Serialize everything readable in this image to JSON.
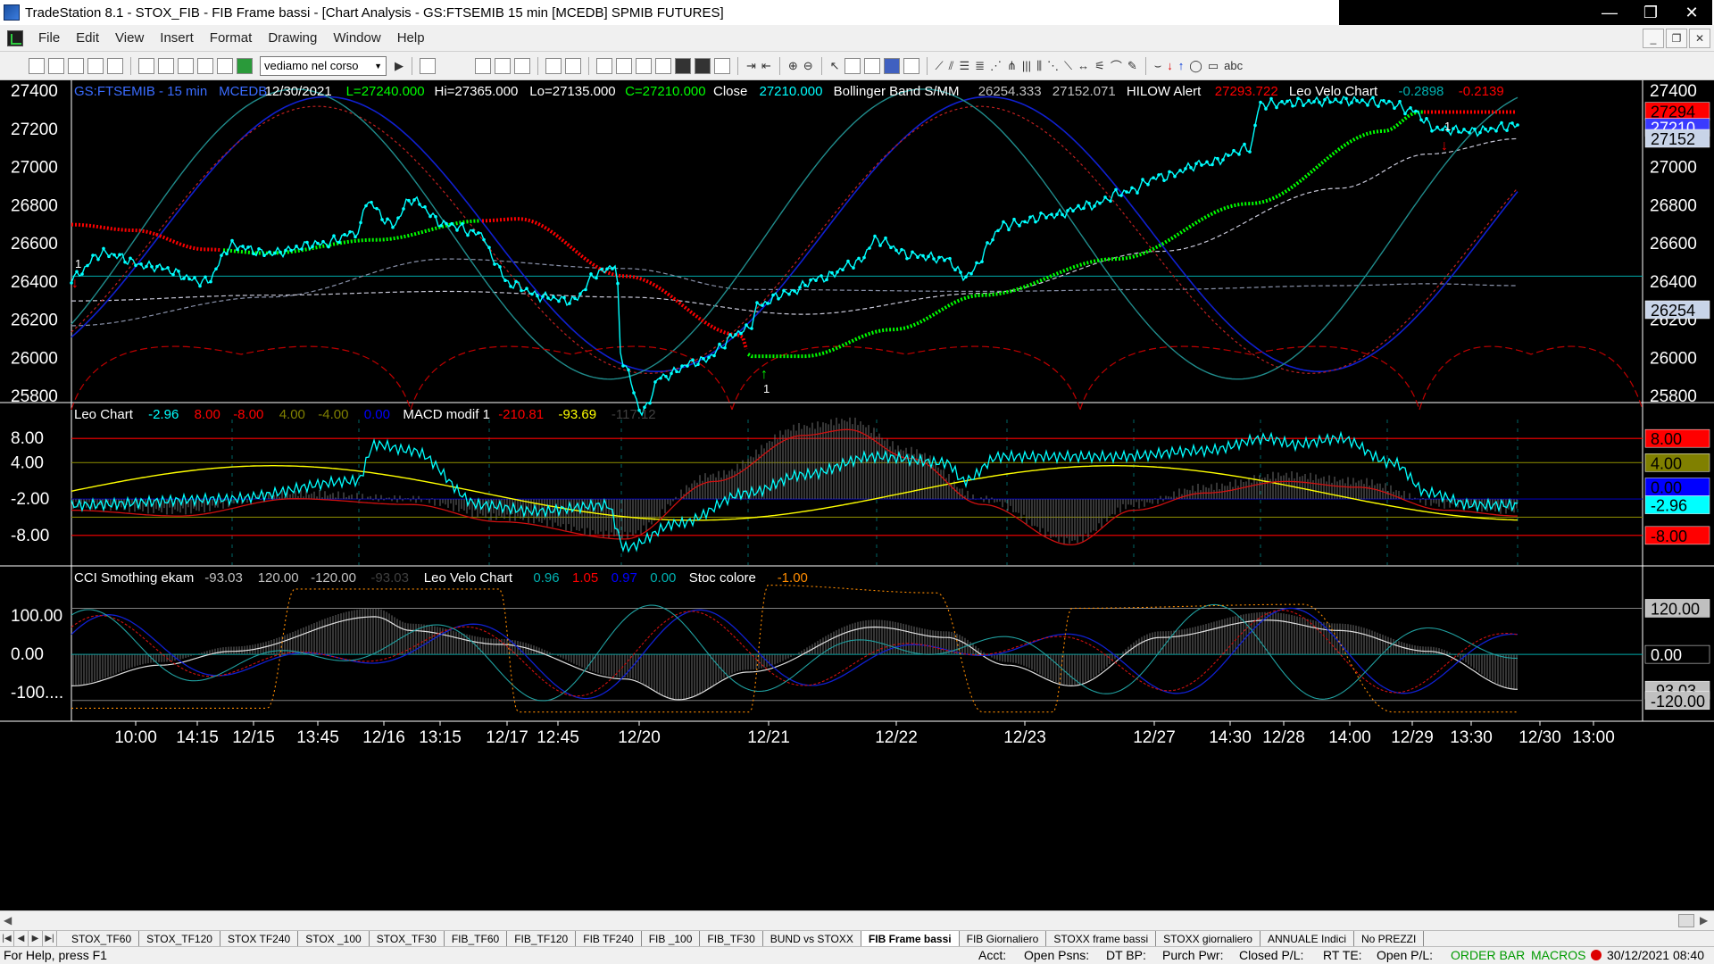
{
  "window": {
    "title": "TradeStation 8.1 - STOX_FIB - FIB Frame bassi - [Chart Analysis - GS:FTSEMIB  15 min  [MCEDB] SPMIB FUTURES]",
    "minimize": "—",
    "restore": "❐",
    "close": "✕"
  },
  "menu": {
    "items": [
      "File",
      "Edit",
      "View",
      "Insert",
      "Format",
      "Drawing",
      "Window",
      "Help"
    ],
    "mdi_min": "_",
    "mdi_restore": "❐",
    "mdi_close": "✕"
  },
  "toolbar": {
    "workspace_select": "vediamo nel corso",
    "text_tool": "abc"
  },
  "chart": {
    "colors": {
      "cyan": "#00ffff",
      "green": "#00ff00",
      "red": "#ff0000",
      "blue": "#0000ff",
      "yellow": "#ffff00",
      "grey": "#808080",
      "white": "#ffffff",
      "olive": "#808000"
    },
    "pane1": {
      "status": [
        {
          "text": "GS:FTSEMIB - 15 min",
          "color": "#3a6cff"
        },
        {
          "text": "MCEDB",
          "color": "#3a6cff"
        },
        {
          "text": "12/30/2021",
          "color": "#ffffff"
        },
        {
          "text": "L=27240.000",
          "color": "#00ff00"
        },
        {
          "text": "Hi=27365.000",
          "color": "#ffffff"
        },
        {
          "text": "Lo=27135.000",
          "color": "#ffffff"
        },
        {
          "text": "C=27210.000",
          "color": "#00ff00"
        },
        {
          "text": "Close",
          "color": "#ffffff"
        },
        {
          "text": "27210.000",
          "color": "#00ffff"
        },
        {
          "text": "Bollinger Band S/MM",
          "color": "#ffffff"
        },
        {
          "text": "26254.333",
          "color": "#c0c0c0"
        },
        {
          "text": "27152.071",
          "color": "#c0c0c0"
        },
        {
          "text": "HILOW Alert",
          "color": "#ffffff"
        },
        {
          "text": "27293.722",
          "color": "#ff0000"
        },
        {
          "text": "Leo Velo Chart",
          "color": "#ffffff"
        },
        {
          "text": "-0.2898",
          "color": "#00b0b0"
        },
        {
          "text": "-0.2139",
          "color": "#ff0000"
        }
      ],
      "y_ticks": [
        "27400",
        "27200",
        "27000",
        "26800",
        "26600",
        "26400",
        "26200",
        "26000",
        "25800"
      ],
      "y_min": 25800,
      "y_max": 27400,
      "badges": [
        {
          "text": "27294",
          "value": 27294,
          "bg": "#ff0000",
          "fg": "#000000"
        },
        {
          "text": "27210",
          "value": 27210,
          "bg": "#3a3aff",
          "fg": "#ffffff"
        },
        {
          "text": "27152",
          "value": 27152,
          "bg": "#c8d4e8",
          "fg": "#000000"
        },
        {
          "text": "26254",
          "value": 26254,
          "bg": "#c8d4e8",
          "fg": "#000000"
        }
      ],
      "markers": [
        "1",
        "1",
        "1"
      ]
    },
    "pane2": {
      "status": [
        {
          "text": "Leo Chart",
          "color": "#ffffff"
        },
        {
          "text": "-2.96",
          "color": "#00ffff"
        },
        {
          "text": "8.00",
          "color": "#ff0000"
        },
        {
          "text": "-8.00",
          "color": "#ff0000"
        },
        {
          "text": "4.00",
          "color": "#808000"
        },
        {
          "text": "-4.00",
          "color": "#808000"
        },
        {
          "text": "0.00",
          "color": "#0000ff"
        },
        {
          "text": "MACD modif 1",
          "color": "#ffffff"
        },
        {
          "text": "-210.81",
          "color": "#ff0000"
        },
        {
          "text": "-93.69",
          "color": "#ffff00"
        },
        {
          "text": "-117.12",
          "color": "#404040"
        }
      ],
      "y_ticks": [
        "8.00",
        "4.00",
        "-2.00",
        "-8.00"
      ],
      "y_values": [
        8,
        4,
        -2,
        -8
      ],
      "y_min": -12,
      "y_max": 12,
      "badges": [
        {
          "text": "8.00",
          "value": 8,
          "bg": "#ff0000",
          "fg": "#000000"
        },
        {
          "text": "4.00",
          "value": 4,
          "bg": "#808000",
          "fg": "#000000"
        },
        {
          "text": "0.00",
          "value": 0,
          "bg": "#0000ff",
          "fg": "#000000"
        },
        {
          "text": "-2.96",
          "value": -2.96,
          "bg": "#00ffff",
          "fg": "#000000"
        },
        {
          "text": "-8.00",
          "value": -8,
          "bg": "#ff0000",
          "fg": "#000000"
        }
      ]
    },
    "pane3": {
      "status": [
        {
          "text": "CCI Smothing ekam",
          "color": "#ffffff"
        },
        {
          "text": "-93.03",
          "color": "#c0c0c0"
        },
        {
          "text": "120.00",
          "color": "#c0c0c0"
        },
        {
          "text": "-120.00",
          "color": "#c0c0c0"
        },
        {
          "text": "-93.03",
          "color": "#404040"
        },
        {
          "text": "Leo Velo Chart",
          "color": "#ffffff"
        },
        {
          "text": "0.96",
          "color": "#00b0b0"
        },
        {
          "text": "1.05",
          "color": "#ff0000"
        },
        {
          "text": "0.97",
          "color": "#0000ff"
        },
        {
          "text": "0.00",
          "color": "#00b0b0"
        },
        {
          "text": "Stoc colore",
          "color": "#ffffff"
        },
        {
          "text": "-1.00",
          "color": "#ff8c00"
        }
      ],
      "y_ticks": [
        "100.00",
        "0.00",
        "-100...."
      ],
      "y_values": [
        100,
        0,
        -100
      ],
      "y_min": -160,
      "y_max": 200,
      "badges": [
        {
          "text": "120.00",
          "value": 120,
          "bg": "#c0c0c0",
          "fg": "#000000"
        },
        {
          "text": "0.00",
          "value": 0,
          "bg": "#000000",
          "fg": "#ffffff"
        },
        {
          "text": "-93.03",
          "value": -93.03,
          "bg": "#c0c0c0",
          "fg": "#000000"
        },
        {
          "text": "-120.00",
          "value": -120,
          "bg": "#c0c0c0",
          "fg": "#000000"
        }
      ]
    },
    "x_ticks": [
      "10:00",
      "14:15",
      "12/15",
      "13:45",
      "12/16",
      "13:15",
      "12/17",
      "12:45",
      "12/20",
      "12/21",
      "12/22",
      "12/23",
      "12/27",
      "14:30",
      "12/28",
      "14:00",
      "12/29",
      "13:30",
      "12/30",
      "13:00"
    ]
  },
  "tabs": {
    "nav": [
      "|◀",
      "◀",
      "▶",
      "▶|"
    ],
    "items": [
      "STOX_TF60",
      "STOX_TF120",
      "STOX TF240",
      "STOX _100",
      "STOX_TF30",
      "FIB_TF60",
      "FIB_TF120",
      "FIB TF240",
      "FIB _100",
      "FIB_TF30",
      "BUND vs STOXX",
      "FIB Frame bassi",
      "FIB Giornaliero",
      "STOXX frame bassi",
      "STOXX giornaliero",
      "ANNUALE Indici",
      "No PREZZI"
    ],
    "active": "FIB Frame bassi"
  },
  "status": {
    "help": "For Help, press F1",
    "acct": "Acct:",
    "open_psns": "Open Psns:",
    "dt_bp": "DT BP:",
    "purch_pwr": "Purch Pwr:",
    "closed_pl": "Closed P/L:",
    "rt_te": "RT TE:",
    "open_pl": "Open P/L:",
    "order_bar": "ORDER BAR",
    "macros": "MACROS",
    "datetime": "30/12/2021 08:40"
  }
}
